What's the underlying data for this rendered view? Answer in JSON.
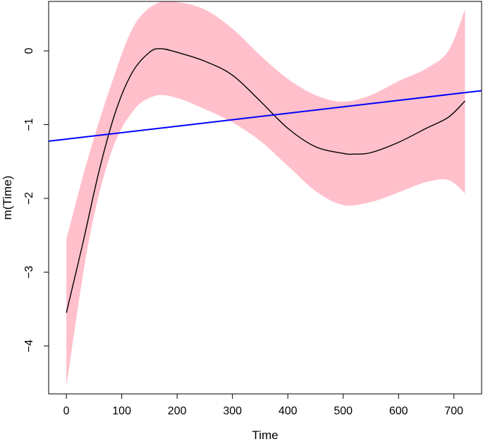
{
  "chart_data": {
    "type": "line",
    "title": "",
    "xlabel": "Time",
    "ylabel": "m(Time)",
    "xlim": [
      -32,
      750
    ],
    "ylim": [
      -4.65,
      0.67
    ],
    "x_ticks": [
      0,
      100,
      200,
      300,
      400,
      500,
      600,
      700
    ],
    "y_ticks": [
      0,
      -1,
      -2,
      -3,
      -4
    ],
    "grid": false,
    "legend": "none",
    "colors": {
      "band": "#ffc0cb",
      "smooth": "#000000",
      "linear": "#0000ff"
    },
    "series": [
      {
        "kind": "band",
        "x": [
          0,
          40,
          80,
          120,
          160,
          200,
          250,
          300,
          350,
          400,
          450,
          500,
          550,
          600,
          650,
          690,
          720
        ],
        "lower": [
          -4.55,
          -2.6,
          -1.4,
          -0.82,
          -0.61,
          -0.64,
          -0.79,
          -0.97,
          -1.22,
          -1.56,
          -1.9,
          -2.09,
          -2.05,
          -1.92,
          -1.78,
          -1.75,
          -1.93
        ],
        "upper": [
          -2.55,
          -1.43,
          -0.48,
          0.31,
          0.63,
          0.66,
          0.56,
          0.3,
          -0.06,
          -0.38,
          -0.6,
          -0.69,
          -0.6,
          -0.41,
          -0.24,
          0.0,
          0.56
        ]
      },
      {
        "kind": "line",
        "x": [
          0,
          30,
          60,
          90,
          120,
          150,
          170,
          200,
          250,
          300,
          350,
          400,
          450,
          500,
          520,
          550,
          600,
          650,
          690,
          720
        ],
        "y": [
          -3.55,
          -2.6,
          -1.6,
          -0.8,
          -0.28,
          -0.02,
          0.03,
          -0.02,
          -0.14,
          -0.33,
          -0.68,
          -1.05,
          -1.3,
          -1.39,
          -1.4,
          -1.38,
          -1.24,
          -1.05,
          -0.9,
          -0.68
        ]
      },
      {
        "kind": "line",
        "x": [
          -32,
          750
        ],
        "y": [
          -1.225,
          -0.54
        ]
      }
    ]
  }
}
